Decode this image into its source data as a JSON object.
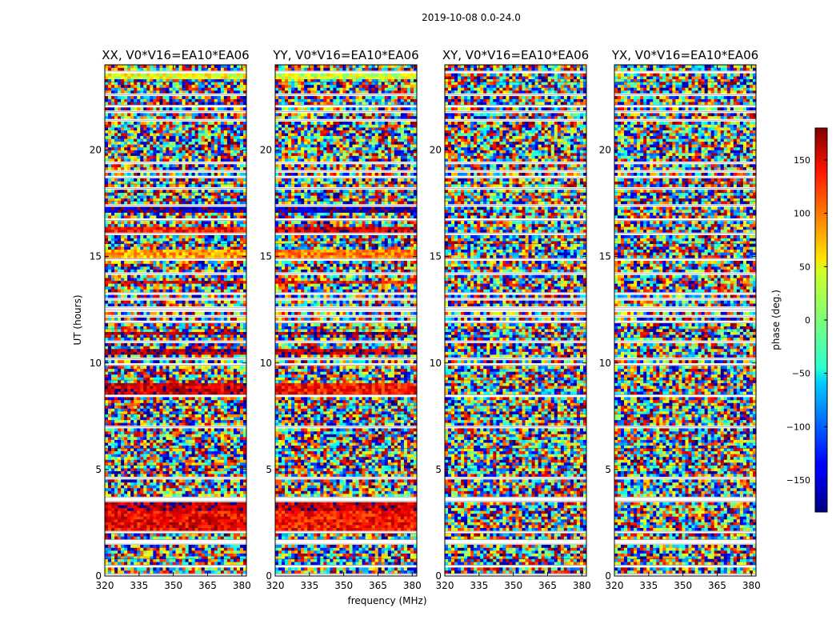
{
  "chart_data": {
    "type": "heatmap",
    "title": "2019-10-08 0.0-24.0",
    "xlabel": "frequency (MHz)",
    "ylabel": "UT (hours)",
    "xlim": [
      320,
      382
    ],
    "ylim": [
      0,
      24
    ],
    "xticks": [
      320,
      335,
      350,
      365,
      380
    ],
    "yticks": [
      0,
      5,
      10,
      15,
      20
    ],
    "panels": [
      {
        "title": "XX, V0*V16=EA10*EA06",
        "mean_phase": [
          {
            "ut": [
              2.0,
              3.1
            ],
            "phase": 140
          },
          {
            "ut": [
              3.1,
              3.4
            ],
            "phase": 160
          },
          {
            "ut": [
              8.6,
              9.0
            ],
            "phase": 150
          },
          {
            "ut": [
              10.4,
              10.6
            ],
            "phase": 165
          },
          {
            "ut": [
              11.3,
              11.5
            ],
            "phase": 170
          },
          {
            "ut": [
              13.7,
              13.9
            ],
            "phase": 150
          },
          {
            "ut": [
              15.0,
              15.3
            ],
            "phase": 80
          },
          {
            "ut": [
              16.2,
              16.4
            ],
            "phase": 130
          },
          {
            "ut": [
              17.1,
              17.3
            ],
            "phase": -160
          },
          {
            "ut": [
              23.4,
              23.6
            ],
            "phase": 40
          }
        ]
      },
      {
        "title": "YY, V0*V16=EA10*EA06",
        "mean_phase": [
          {
            "ut": [
              2.0,
              3.1
            ],
            "phase": 130
          },
          {
            "ut": [
              3.1,
              3.4
            ],
            "phase": 155
          },
          {
            "ut": [
              8.6,
              9.0
            ],
            "phase": 130
          },
          {
            "ut": [
              10.4,
              10.6
            ],
            "phase": 160
          },
          {
            "ut": [
              11.3,
              11.5
            ],
            "phase": 165
          },
          {
            "ut": [
              13.7,
              13.9
            ],
            "phase": 140
          },
          {
            "ut": [
              15.0,
              15.3
            ],
            "phase": 90
          },
          {
            "ut": [
              16.2,
              16.4
            ],
            "phase": 150
          },
          {
            "ut": [
              17.1,
              17.3
            ],
            "phase": -160
          },
          {
            "ut": [
              23.4,
              23.6
            ],
            "phase": 30
          }
        ]
      },
      {
        "title": "XY, V0*V16=EA10*EA06",
        "mean_phase": []
      },
      {
        "title": "YX, V0*V16=EA10*EA06",
        "mean_phase": []
      }
    ],
    "flagged_ut": [
      0.1,
      0.5,
      0.8,
      1.5,
      1.7,
      2.0,
      2.1,
      3.5,
      3.7,
      4.6,
      5.2,
      6.0,
      7.0,
      7.6,
      8.0,
      8.5,
      9.2,
      9.9,
      10.2,
      11.0,
      11.2,
      11.6,
      11.9,
      12.2,
      12.5,
      12.6,
      13.0,
      13.3,
      14.2,
      14.9,
      15.6,
      16.0,
      16.1,
      16.7,
      17.4,
      17.6,
      18.0,
      18.2,
      18.4,
      18.7,
      19.0,
      19.4,
      21.4,
      21.8,
      22.1,
      22.6,
      23.2,
      23.7
    ],
    "colorbar": {
      "label": "phase (deg.)",
      "range": [
        -180,
        180
      ],
      "ticks": [
        -150,
        -100,
        -50,
        0,
        50,
        100,
        150
      ],
      "tick_labels": [
        "−150",
        "−100",
        "−50",
        "0",
        "50",
        "100",
        "150"
      ],
      "colormap": "jet"
    }
  }
}
